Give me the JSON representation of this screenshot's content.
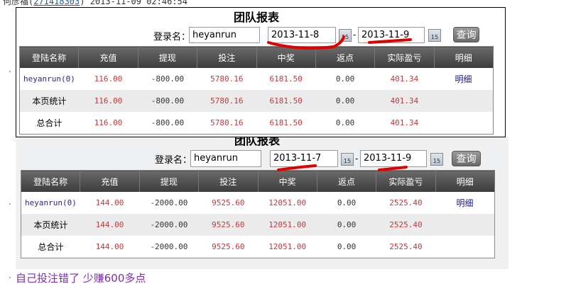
{
  "header": {
    "user": "何彦福(",
    "qq": "271418303",
    "rest": ") 2013-11-09 02:46:54"
  },
  "reports": [
    {
      "title": "团队报表",
      "login_label": "登录名：",
      "login_value": "heyanrun",
      "date_from": "2013-11-8",
      "date_to": "2013-11-9",
      "dash": "-",
      "cal_icon": "15",
      "query": "查询",
      "columns": [
        "登陆名称",
        "充值",
        "提现",
        "投注",
        "中奖",
        "返点",
        "实际盈亏",
        "明细"
      ],
      "rows": [
        [
          "heyanrun(0)",
          "116.00",
          "-800.00",
          "5780.16",
          "6181.50",
          "0.00",
          "401.34",
          "明细"
        ],
        [
          "本页统计",
          "116.00",
          "-800.00",
          "5780.16",
          "6181.50",
          "0.00",
          "401.34",
          ""
        ],
        [
          "总合计",
          "116.00",
          "-800.00",
          "5780.16",
          "6181.50",
          "0.00",
          "401.34",
          ""
        ]
      ]
    },
    {
      "title": "团队报表",
      "login_label": "登录名：",
      "login_value": "heyanrun",
      "date_from": "2013-11-7",
      "date_to": "2013-11-9",
      "dash": "-",
      "cal_icon": "15",
      "query": "查询",
      "columns": [
        "登陆名称",
        "充值",
        "提现",
        "投注",
        "中奖",
        "返点",
        "实际盈亏",
        "明细"
      ],
      "rows": [
        [
          "heyanrun(0)",
          "144.00",
          "-2000.00",
          "9525.60",
          "12051.00",
          "0.00",
          "2525.40",
          "明细"
        ],
        [
          "本页统计",
          "144.00",
          "-2000.00",
          "9525.60",
          "12051.00",
          "0.00",
          "2525.40",
          ""
        ],
        [
          "总合计",
          "144.00",
          "-2000.00",
          "9525.60",
          "12051.00",
          "0.00",
          "2525.40",
          ""
        ]
      ]
    }
  ],
  "note": "自己投注错了 少赚600多点",
  "annotation_color": "#e00000"
}
